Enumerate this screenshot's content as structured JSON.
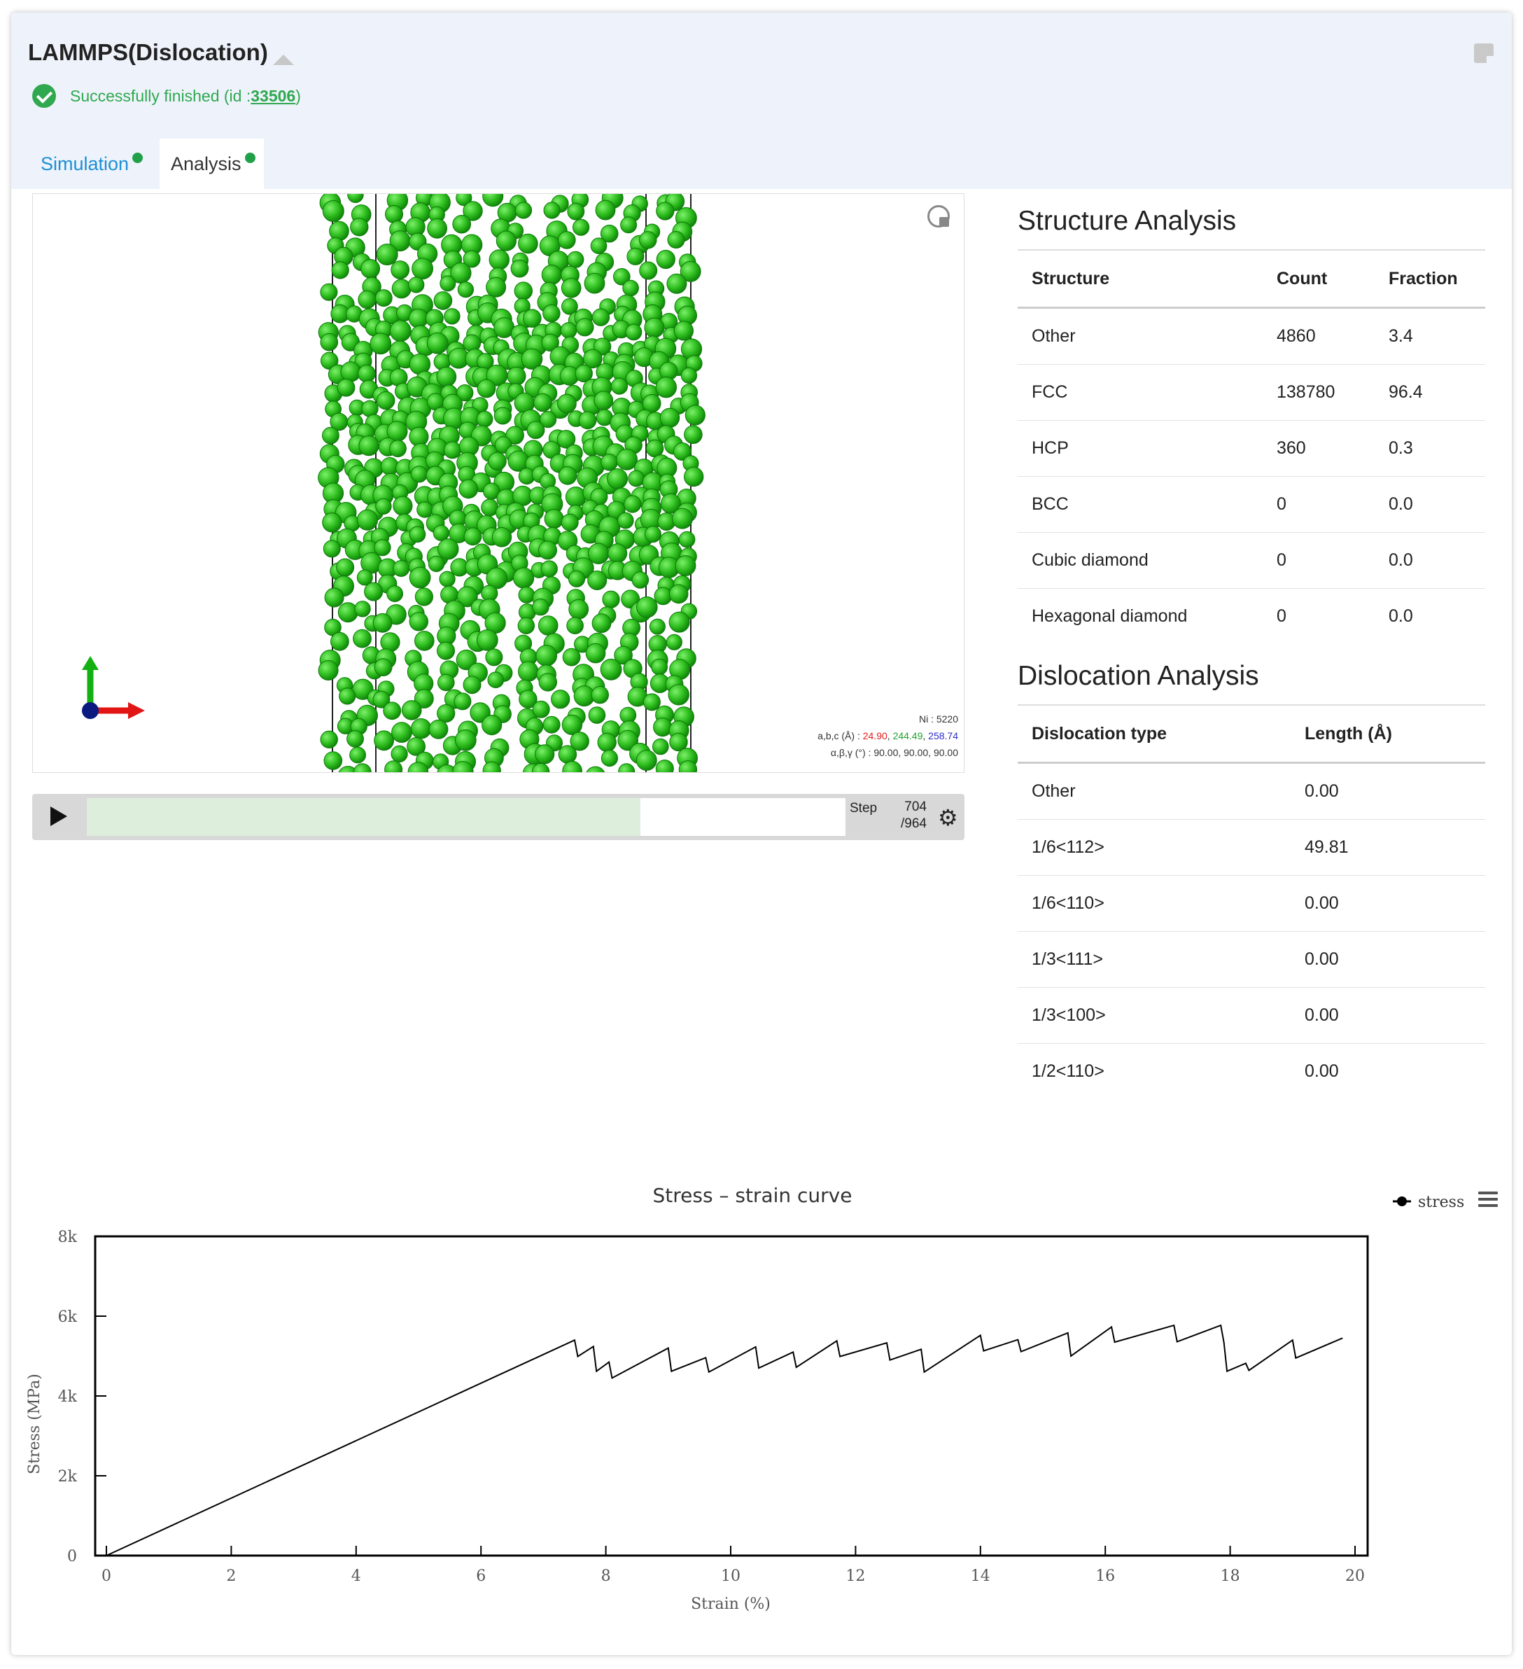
{
  "header": {
    "title": "LAMMPS(Dislocation)",
    "status_text": "Successfully finished",
    "status_id_prefix": "(id : ",
    "status_id": "33506",
    "status_id_suffix": ")"
  },
  "tabs": [
    {
      "label": "Simulation",
      "active": false
    },
    {
      "label": "Analysis",
      "active": true
    }
  ],
  "viewer": {
    "element_count": "Ni : 5220",
    "lattice_label": "a,b,c (Å) : ",
    "lattice_a": "24.90",
    "lattice_b": "244.49",
    "lattice_c": "258.74",
    "angle_label": "α,β,γ (°) : 90.00, 90.00, 90.00",
    "atom_color": "#2ebd1e",
    "reset_icon": "reset-view-icon"
  },
  "player": {
    "step_label": "Step",
    "step_current": "704",
    "step_total": "/964",
    "progress": 0.73,
    "play_icon": "play-icon",
    "settings_icon": "gear-icon"
  },
  "structure": {
    "title": "Structure Analysis",
    "headers": [
      "Structure",
      "Count",
      "Fraction"
    ],
    "rows": [
      [
        "Other",
        "4860",
        "3.4"
      ],
      [
        "FCC",
        "138780",
        "96.4"
      ],
      [
        "HCP",
        "360",
        "0.3"
      ],
      [
        "BCC",
        "0",
        "0.0"
      ],
      [
        "Cubic diamond",
        "0",
        "0.0"
      ],
      [
        "Hexagonal diamond",
        "0",
        "0.0"
      ]
    ]
  },
  "dislocation": {
    "title": "Dislocation Analysis",
    "headers": [
      "Dislocation type",
      "Length (Å)"
    ],
    "rows": [
      [
        "Other",
        "0.00"
      ],
      [
        "1/6<112>",
        "49.81"
      ],
      [
        "1/6<110>",
        "0.00"
      ],
      [
        "1/3<111>",
        "0.00"
      ],
      [
        "1/3<100>",
        "0.00"
      ],
      [
        "1/2<110>",
        "0.00"
      ]
    ]
  },
  "chart_data": {
    "type": "line",
    "title": "Stress – strain curve",
    "xlabel": "Strain (%)",
    "ylabel": "Stress (MPa)",
    "xlim": [
      0,
      20
    ],
    "ylim": [
      0,
      8000
    ],
    "xticks": [
      "0",
      "2",
      "4",
      "6",
      "8",
      "10",
      "12",
      "14",
      "16",
      "18",
      "20"
    ],
    "yticks": [
      "0",
      "2k",
      "4k",
      "6k",
      "8k"
    ],
    "legend_position": "top-right",
    "grid": false,
    "series": [
      {
        "name": "stress",
        "color": "#000000",
        "x": [
          0,
          7.5,
          7.55,
          7.8,
          7.85,
          8.05,
          8.1,
          9.0,
          9.05,
          9.6,
          9.65,
          10.4,
          10.45,
          11.0,
          11.05,
          11.7,
          11.75,
          12.5,
          12.55,
          13.05,
          13.1,
          14.0,
          14.05,
          14.6,
          14.65,
          15.4,
          15.45,
          16.1,
          16.15,
          17.1,
          17.15,
          17.85,
          17.9,
          17.95,
          18.25,
          18.3,
          19.0,
          19.05,
          19.8
        ],
        "y": [
          0,
          5400,
          4990,
          5240,
          4620,
          4850,
          4450,
          5200,
          4620,
          4960,
          4600,
          5230,
          4700,
          5100,
          4720,
          5380,
          4990,
          5330,
          4900,
          5170,
          4600,
          5520,
          5130,
          5410,
          5110,
          5580,
          5000,
          5730,
          5350,
          5770,
          5360,
          5770,
          5340,
          4620,
          4820,
          4640,
          5400,
          4950,
          5450
        ]
      }
    ]
  }
}
